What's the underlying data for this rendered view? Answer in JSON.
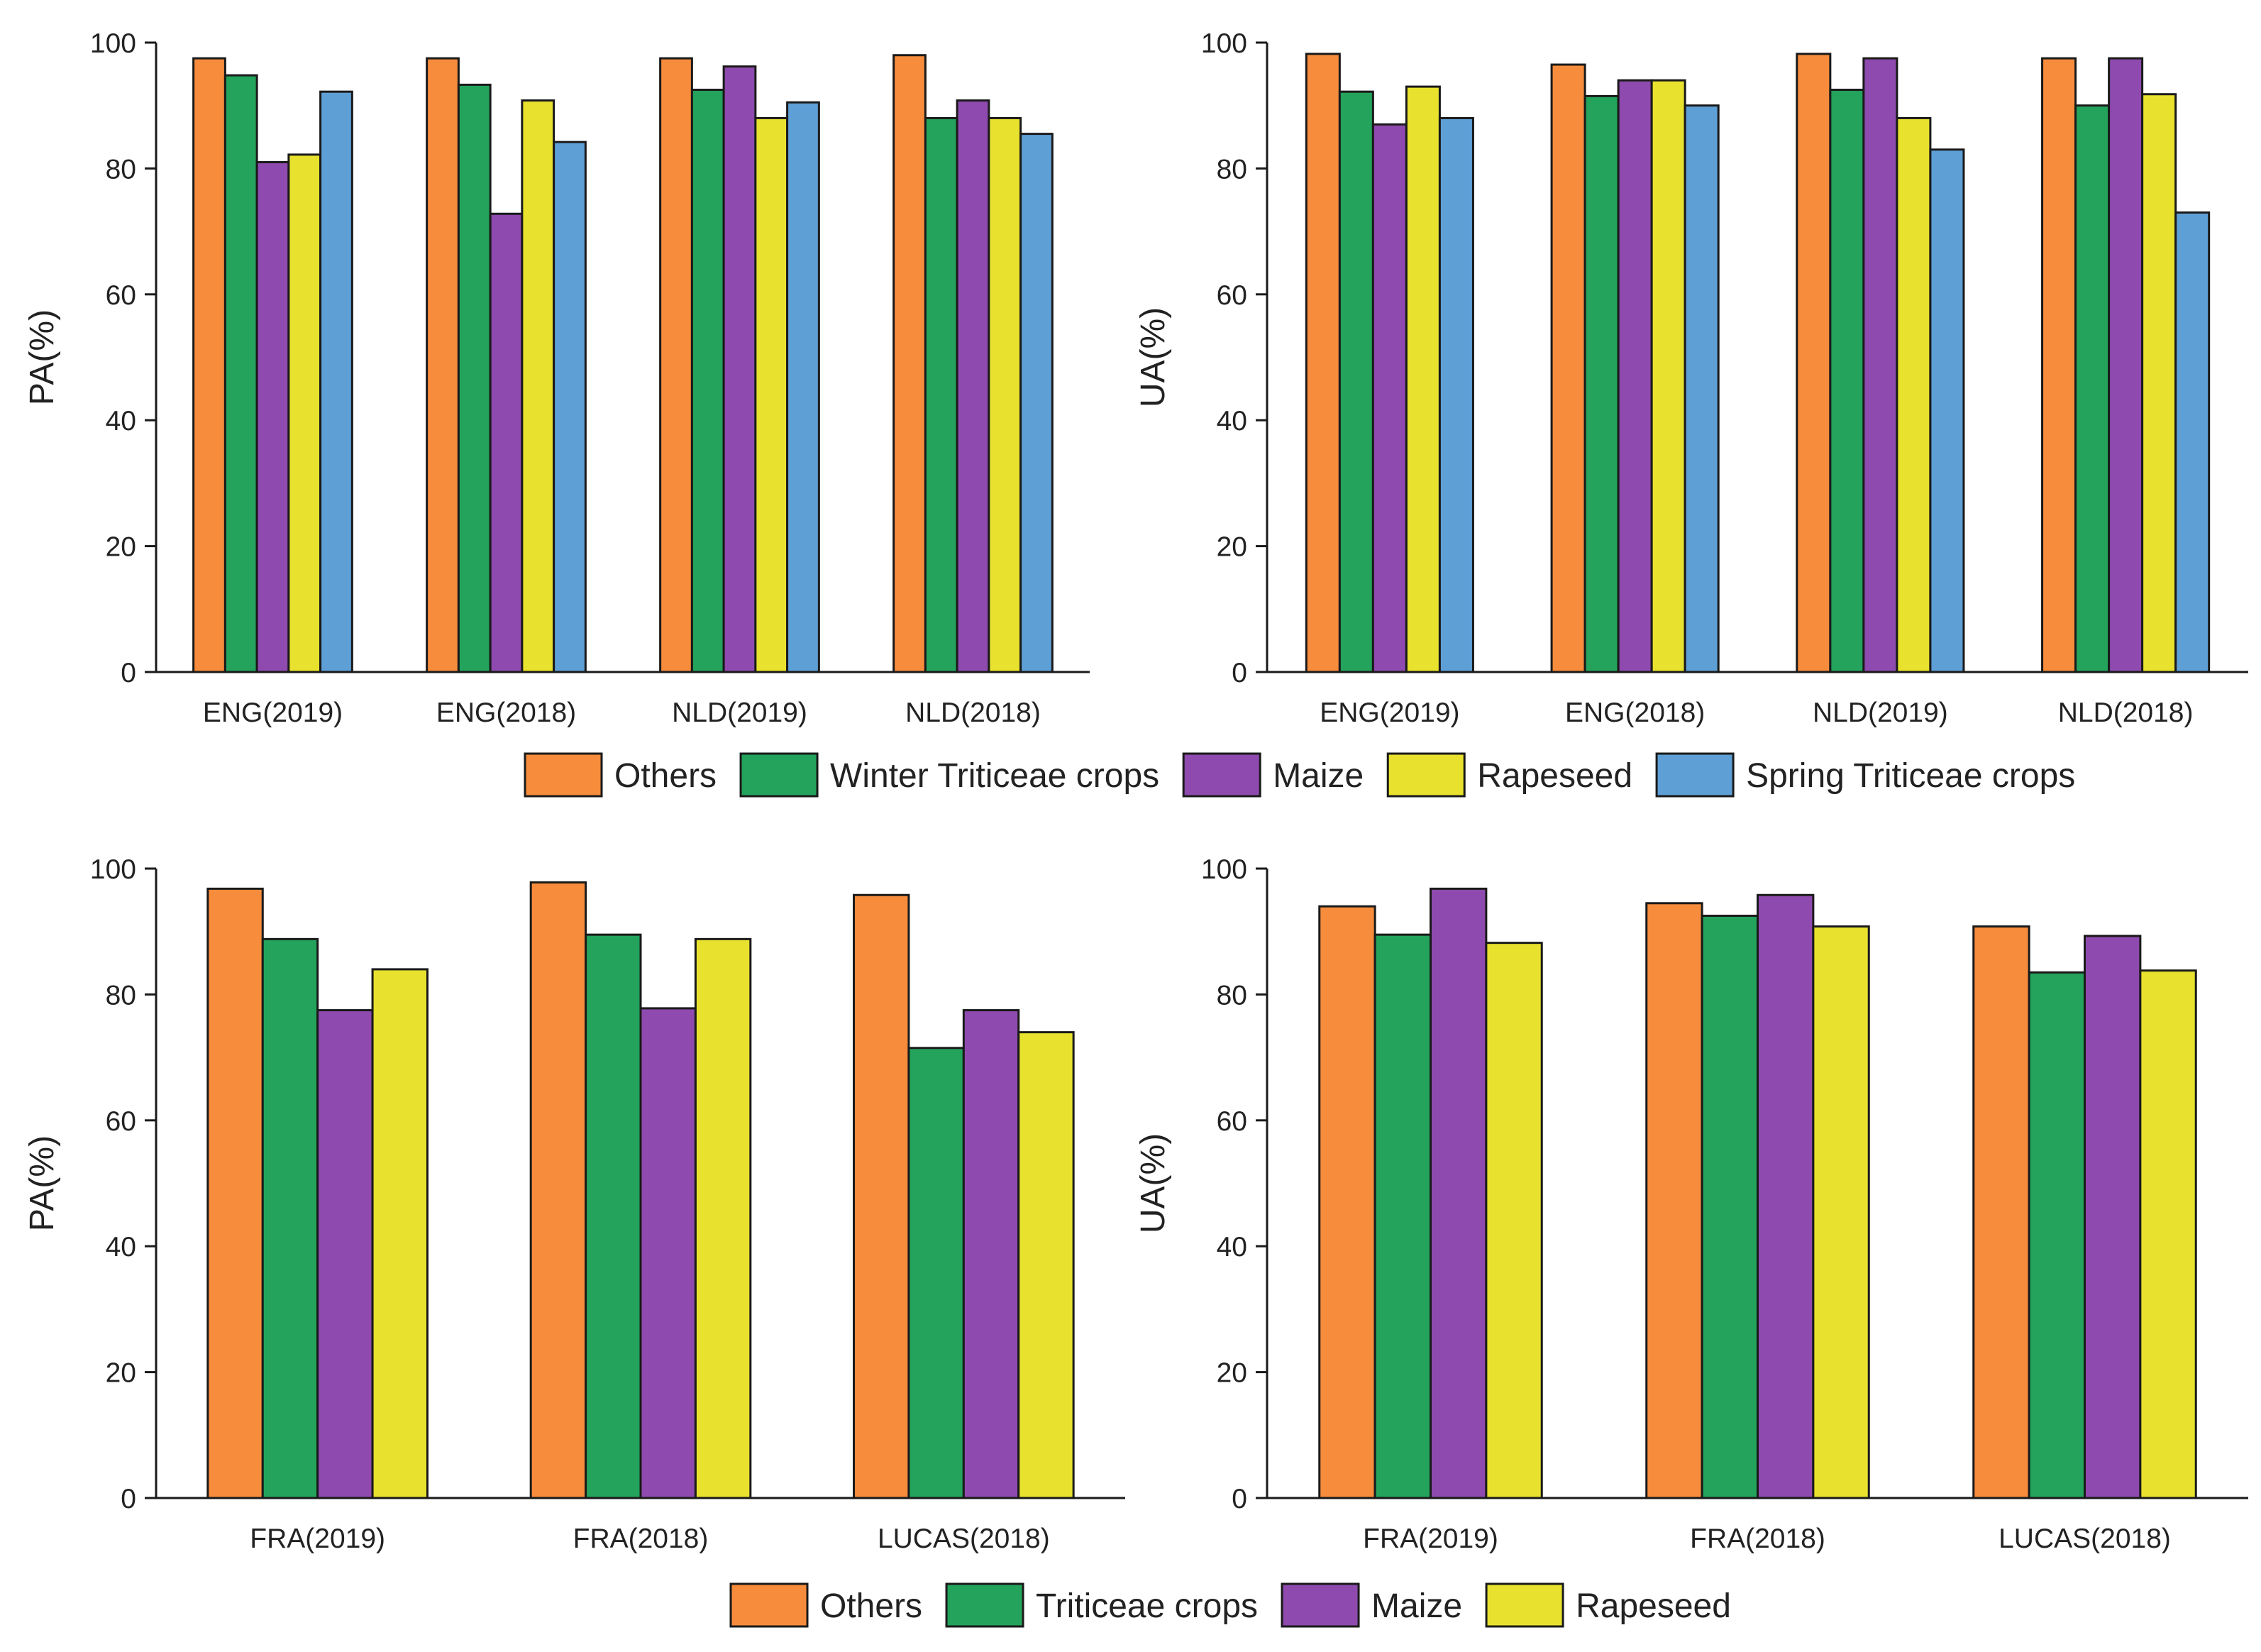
{
  "chart_data": [
    {
      "type": "bar",
      "ylabel": "PA(%)",
      "xlabel": "",
      "ylim": [
        0,
        100
      ],
      "yticks": [
        0,
        20,
        40,
        60,
        80,
        100
      ],
      "categories": [
        "ENG(2019)",
        "ENG(2018)",
        "NLD(2019)",
        "NLD(2018)"
      ],
      "series": [
        {
          "name": "Others",
          "values": [
            97.5,
            97.5,
            97.5,
            98
          ]
        },
        {
          "name": "Winter Triticeae crops",
          "values": [
            94.8,
            93.3,
            92.5,
            88
          ]
        },
        {
          "name": "Maize",
          "values": [
            81,
            72.8,
            96.2,
            90.8
          ]
        },
        {
          "name": "Rapeseed",
          "values": [
            82.2,
            90.8,
            88,
            88
          ]
        },
        {
          "name": "Spring Triticeae crops",
          "values": [
            92.2,
            84.2,
            90.5,
            85.5
          ]
        }
      ]
    },
    {
      "type": "bar",
      "ylabel": "UA(%)",
      "xlabel": "",
      "ylim": [
        0,
        100
      ],
      "yticks": [
        0,
        20,
        40,
        60,
        80,
        100
      ],
      "categories": [
        "ENG(2019)",
        "ENG(2018)",
        "NLD(2019)",
        "NLD(2018)"
      ],
      "series": [
        {
          "name": "Others",
          "values": [
            98.2,
            96.5,
            98.2,
            97.5
          ]
        },
        {
          "name": "Winter Triticeae crops",
          "values": [
            92.2,
            91.5,
            92.5,
            90
          ]
        },
        {
          "name": "Maize",
          "values": [
            87,
            94,
            97.5,
            97.5
          ]
        },
        {
          "name": "Rapeseed",
          "values": [
            93,
            94,
            88,
            91.8
          ]
        },
        {
          "name": "Spring Triticeae crops",
          "values": [
            88,
            90,
            83,
            73
          ]
        }
      ]
    },
    {
      "type": "bar",
      "ylabel": "PA(%)",
      "xlabel": "",
      "ylim": [
        0,
        100
      ],
      "yticks": [
        0,
        20,
        40,
        60,
        80,
        100
      ],
      "categories": [
        "FRA(2019)",
        "FRA(2018)",
        "LUCAS(2018)"
      ],
      "series": [
        {
          "name": "Others",
          "values": [
            96.8,
            97.8,
            95.8
          ]
        },
        {
          "name": "Triticeae crops",
          "values": [
            88.8,
            89.5,
            71.5
          ]
        },
        {
          "name": "Maize",
          "values": [
            77.5,
            77.8,
            77.5
          ]
        },
        {
          "name": "Rapeseed",
          "values": [
            84,
            88.8,
            74
          ]
        }
      ]
    },
    {
      "type": "bar",
      "ylabel": "UA(%)",
      "xlabel": "",
      "ylim": [
        0,
        100
      ],
      "yticks": [
        0,
        20,
        40,
        60,
        80,
        100
      ],
      "categories": [
        "FRA(2019)",
        "FRA(2018)",
        "LUCAS(2018)"
      ],
      "series": [
        {
          "name": "Others",
          "values": [
            94,
            94.5,
            90.8
          ]
        },
        {
          "name": "Triticeae crops",
          "values": [
            89.5,
            92.5,
            83.5
          ]
        },
        {
          "name": "Maize",
          "values": [
            96.8,
            95.8,
            89.3
          ]
        },
        {
          "name": "Rapeseed",
          "values": [
            88.2,
            90.8,
            83.8
          ]
        }
      ]
    }
  ],
  "legends": [
    {
      "entries": [
        {
          "label": "Others",
          "color": "#F78C3C"
        },
        {
          "label": "Winter Triticeae crops",
          "color": "#23A35B"
        },
        {
          "label": "Maize",
          "color": "#8E4AAE"
        },
        {
          "label": "Rapeseed",
          "color": "#E8E22E"
        },
        {
          "label": "Spring Triticeae crops",
          "color": "#5E9FD6"
        }
      ]
    },
    {
      "entries": [
        {
          "label": "Others",
          "color": "#F78C3C"
        },
        {
          "label": "Triticeae crops",
          "color": "#23A35B"
        },
        {
          "label": "Maize",
          "color": "#8E4AAE"
        },
        {
          "label": "Rapeseed",
          "color": "#E8E22E"
        }
      ]
    }
  ],
  "colors": {
    "Others": "#F78C3C",
    "Winter Triticeae crops": "#23A35B",
    "Triticeae crops": "#23A35B",
    "Maize": "#8E4AAE",
    "Rapeseed": "#E8E22E",
    "Spring Triticeae crops": "#5E9FD6"
  }
}
